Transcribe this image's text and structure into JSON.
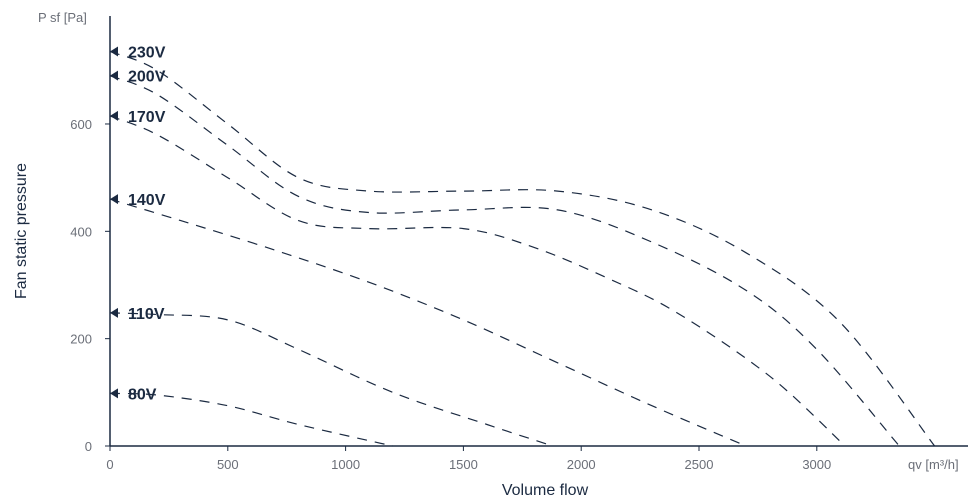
{
  "chart_data": {
    "type": "line",
    "ylabel_unit": "P sf [Pa]",
    "xlabel_unit": "qv [m³/h]",
    "ylabel": "Fan static pressure",
    "xlabel": "Volume flow",
    "xlim": [
      0,
      3640
    ],
    "ylim": [
      0,
      800
    ],
    "x_ticks": [
      0,
      500,
      1000,
      1500,
      2000,
      2500,
      3000
    ],
    "y_ticks": [
      0,
      200,
      400,
      600
    ],
    "grid": false,
    "series": [
      {
        "name": "230V",
        "x": [
          0,
          200,
          500,
          800,
          1100,
          1500,
          1900,
          2300,
          2700,
          3100,
          3500
        ],
        "y": [
          735,
          700,
          600,
          500,
          475,
          475,
          475,
          440,
          360,
          230,
          0
        ]
      },
      {
        "name": "200V",
        "x": [
          0,
          200,
          500,
          800,
          1100,
          1500,
          1900,
          2300,
          2700,
          3000,
          3350
        ],
        "y": [
          690,
          655,
          560,
          465,
          435,
          440,
          440,
          380,
          290,
          180,
          0
        ]
      },
      {
        "name": "170V",
        "x": [
          0,
          200,
          500,
          800,
          1100,
          1500,
          1800,
          2100,
          2400,
          2800,
          3120
        ],
        "y": [
          615,
          580,
          500,
          420,
          405,
          405,
          370,
          315,
          250,
          130,
          0
        ]
      },
      {
        "name": "140V",
        "x": [
          0,
          300,
          700,
          1100,
          1500,
          1900,
          2300,
          2700
        ],
        "y": [
          460,
          420,
          365,
          305,
          235,
          155,
          75,
          0
        ]
      },
      {
        "name": "110V",
        "x": [
          0,
          200,
          500,
          800,
          1200,
          1600,
          1880
        ],
        "y": [
          248,
          245,
          235,
          180,
          100,
          40,
          0
        ]
      },
      {
        "name": "80V",
        "x": [
          0,
          200,
          500,
          800,
          1200
        ],
        "y": [
          98,
          95,
          75,
          40,
          0
        ]
      }
    ]
  }
}
